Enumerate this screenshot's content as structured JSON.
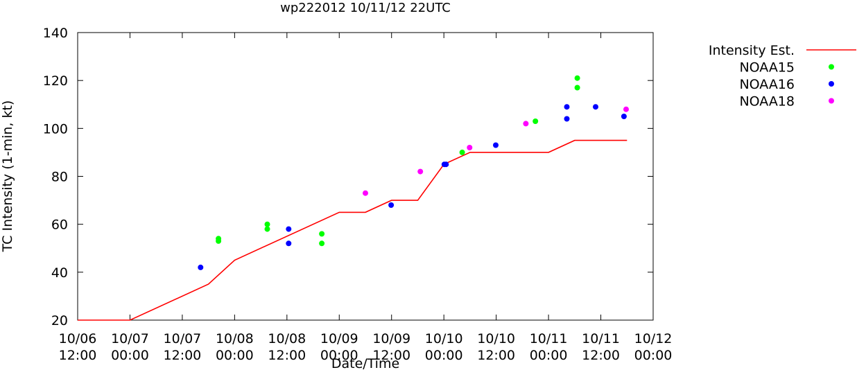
{
  "chart_data": {
    "type": "scatter",
    "title": "wp222012 10/11/12 22UTC",
    "xlabel": "Date/Time",
    "ylabel": "TC Intensity (1-min, kt)",
    "ylim": [
      20,
      140
    ],
    "yticks": [
      20,
      40,
      60,
      80,
      100,
      120,
      140
    ],
    "xlim": [
      0,
      132
    ],
    "x_units": "hours since 10/06 12:00",
    "xticks": [
      {
        "x": 0,
        "date": "10/06",
        "time": "12:00"
      },
      {
        "x": 12,
        "date": "10/07",
        "time": "00:00"
      },
      {
        "x": 24,
        "date": "10/07",
        "time": "12:00"
      },
      {
        "x": 36,
        "date": "10/08",
        "time": "00:00"
      },
      {
        "x": 48,
        "date": "10/08",
        "time": "12:00"
      },
      {
        "x": 60,
        "date": "10/09",
        "time": "00:00"
      },
      {
        "x": 72,
        "date": "10/09",
        "time": "12:00"
      },
      {
        "x": 84,
        "date": "10/10",
        "time": "00:00"
      },
      {
        "x": 96,
        "date": "10/10",
        "time": "12:00"
      },
      {
        "x": 108,
        "date": "10/11",
        "time": "00:00"
      },
      {
        "x": 120,
        "date": "10/11",
        "time": "12:00"
      },
      {
        "x": 132,
        "date": "10/12",
        "time": "00:00"
      }
    ],
    "legend_position": "outside-top-right",
    "grid": false,
    "series": [
      {
        "name": "Intensity Est.",
        "kind": "line",
        "color": "#ff0000",
        "points": [
          [
            0,
            20
          ],
          [
            12,
            20
          ],
          [
            30,
            35
          ],
          [
            36,
            45
          ],
          [
            60,
            65
          ],
          [
            66,
            65
          ],
          [
            72,
            70
          ],
          [
            78,
            70
          ],
          [
            84,
            85
          ],
          [
            90,
            90
          ],
          [
            102,
            90
          ],
          [
            108,
            90
          ],
          [
            114,
            95
          ],
          [
            126,
            95
          ]
        ]
      },
      {
        "name": "NOAA15",
        "kind": "scatter",
        "color": "#00ff00",
        "points": [
          [
            32.3,
            54
          ],
          [
            32.3,
            53
          ],
          [
            43.5,
            60
          ],
          [
            43.5,
            58
          ],
          [
            56,
            56
          ],
          [
            56,
            52
          ],
          [
            88.2,
            90
          ],
          [
            105,
            103
          ],
          [
            114.6,
            121
          ],
          [
            114.6,
            117
          ]
        ]
      },
      {
        "name": "NOAA16",
        "kind": "scatter",
        "color": "#0000ff",
        "points": [
          [
            28.2,
            42
          ],
          [
            48.4,
            58
          ],
          [
            48.4,
            52
          ],
          [
            71.9,
            68
          ],
          [
            84.1,
            85
          ],
          [
            84.5,
            85
          ],
          [
            95.9,
            93
          ],
          [
            112.2,
            109
          ],
          [
            112.2,
            104
          ],
          [
            118.8,
            109
          ],
          [
            125.3,
            105
          ]
        ]
      },
      {
        "name": "NOAA18",
        "kind": "scatter",
        "color": "#ff00ff",
        "points": [
          [
            66,
            73
          ],
          [
            78.6,
            82
          ],
          [
            89.9,
            92
          ],
          [
            102.8,
            102
          ],
          [
            125.8,
            108
          ]
        ]
      }
    ]
  }
}
